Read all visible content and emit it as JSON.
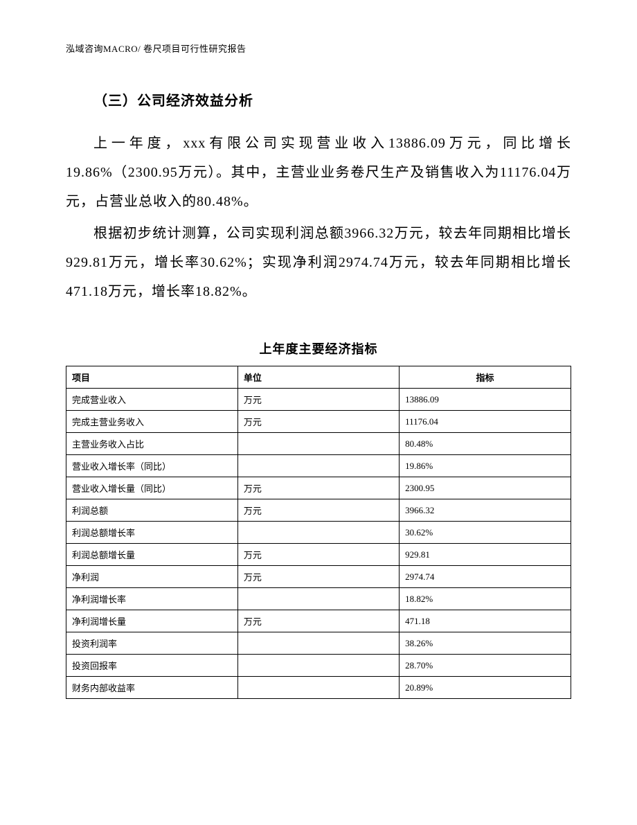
{
  "header": {
    "text": "泓域咨询MACRO/    卷尺项目可行性研究报告"
  },
  "section": {
    "title": "（三）公司经济效益分析"
  },
  "paragraphs": {
    "p1": "上一年度，xxx有限公司实现营业收入13886.09万元，同比增长19.86%（2300.95万元）。其中，主营业业务卷尺生产及销售收入为11176.04万元，占营业总收入的80.48%。",
    "p2": "根据初步统计测算，公司实现利润总额3966.32万元，较去年同期相比增长929.81万元，增长率30.62%；实现净利润2974.74万元，较去年同期相比增长471.18万元，增长率18.82%。"
  },
  "table": {
    "title": "上年度主要经济指标",
    "headers": {
      "col1": "项目",
      "col2": "单位",
      "col3": "指标"
    },
    "rows": [
      {
        "item": "完成营业收入",
        "unit": "万元",
        "value": "13886.09"
      },
      {
        "item": "完成主营业务收入",
        "unit": "万元",
        "value": "11176.04"
      },
      {
        "item": "主营业务收入占比",
        "unit": "",
        "value": "80.48%"
      },
      {
        "item": "营业收入增长率（同比）",
        "unit": "",
        "value": "19.86%"
      },
      {
        "item": "营业收入增长量（同比）",
        "unit": "万元",
        "value": "2300.95"
      },
      {
        "item": "利润总额",
        "unit": "万元",
        "value": "3966.32"
      },
      {
        "item": "利润总额增长率",
        "unit": "",
        "value": "30.62%"
      },
      {
        "item": "利润总额增长量",
        "unit": "万元",
        "value": "929.81"
      },
      {
        "item": "净利润",
        "unit": "万元",
        "value": "2974.74"
      },
      {
        "item": "净利润增长率",
        "unit": "",
        "value": "18.82%"
      },
      {
        "item": "净利润增长量",
        "unit": "万元",
        "value": "471.18"
      },
      {
        "item": "投资利润率",
        "unit": "",
        "value": "38.26%"
      },
      {
        "item": "投资回报率",
        "unit": "",
        "value": "28.70%"
      },
      {
        "item": "财务内部收益率",
        "unit": "",
        "value": "20.89%"
      }
    ]
  },
  "styles": {
    "page_background": "#ffffff",
    "text_color": "#000000",
    "border_color": "#000000",
    "header_fontsize": 13,
    "body_fontsize": 20,
    "table_fontsize": 13,
    "line_height": 2.1
  }
}
